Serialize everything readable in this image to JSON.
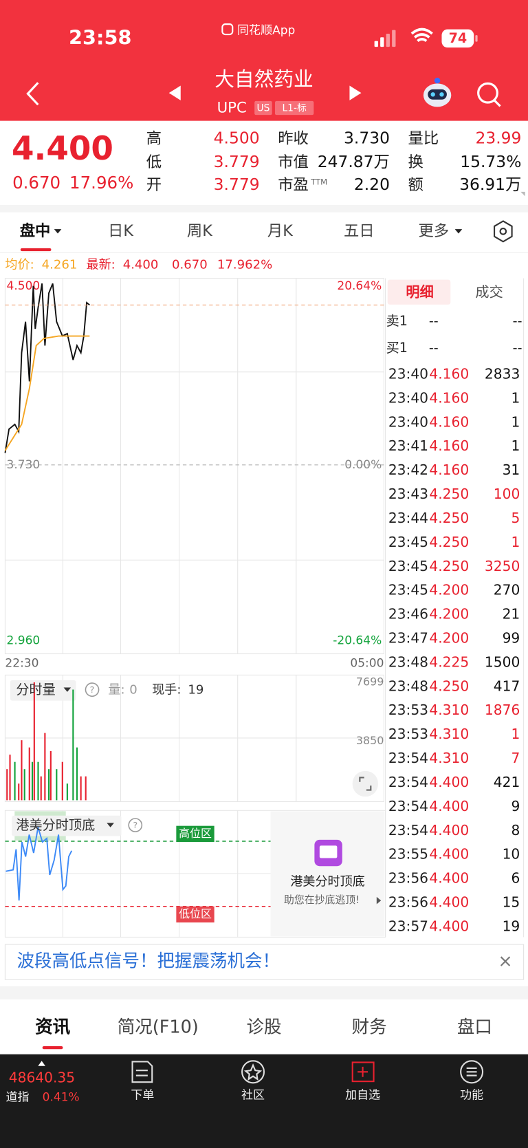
{
  "status_bar": {
    "time": "23:58",
    "app": "同花顺App",
    "battery": "74"
  },
  "header": {
    "name": "大自然药业",
    "code": "UPC",
    "badges": [
      "US",
      "L1-标"
    ]
  },
  "quote": {
    "price": "4.400",
    "change": "0.670",
    "change_pct": "17.96%",
    "stats": [
      {
        "label": "高",
        "value": "4.500",
        "color": "#e8212f"
      },
      {
        "label": "低",
        "value": "3.779",
        "color": "#e8212f"
      },
      {
        "label": "开",
        "value": "3.779",
        "color": "#e8212f"
      },
      {
        "label": "昨收",
        "value": "3.730",
        "color": "#111111"
      },
      {
        "label": "市值",
        "value": "247.87万",
        "color": "#111111"
      },
      {
        "label": "市盈",
        "sup": "TTM",
        "value": "2.20",
        "color": "#111111"
      },
      {
        "label": "量比",
        "value": "23.99",
        "color": "#e8212f"
      },
      {
        "label": "换",
        "value": "15.73%",
        "color": "#111111"
      },
      {
        "label": "额",
        "value": "36.91万",
        "color": "#111111"
      }
    ]
  },
  "tabs": {
    "items": [
      "盘中",
      "日K",
      "周K",
      "月K",
      "五日",
      "更多"
    ],
    "active": 0
  },
  "intraday": {
    "avg_label": "均价:",
    "avg": "4.261",
    "latest_label": "最新:",
    "latest": "4.400",
    "change": "0.670",
    "change_pct": "17.962%",
    "chart": {
      "type": "line",
      "xlim": [
        0,
        390
      ],
      "xticks": [
        {
          "value": 0,
          "label": "22:30"
        },
        {
          "value": 390,
          "label": "05:00"
        }
      ],
      "ylim": [
        2.96,
        4.5
      ],
      "yticks": [
        {
          "value": 4.5,
          "label": "4.500"
        },
        {
          "value": 3.73,
          "label": "3.730"
        },
        {
          "value": 2.96,
          "label": "2.960"
        }
      ],
      "pct_labels": [
        "20.64%",
        "0.00%",
        "-20.64%"
      ],
      "series": [
        {
          "color": "#111111",
          "x": [
            0,
            4,
            10,
            14,
            17,
            21,
            25,
            29,
            31,
            34,
            38,
            41,
            45,
            49,
            53,
            59,
            64,
            70,
            74,
            78,
            81,
            84,
            87
          ],
          "values": [
            3.78,
            3.88,
            3.9,
            3.87,
            4.2,
            4.33,
            4.08,
            4.48,
            4.3,
            4.39,
            4.49,
            4.23,
            4.45,
            4.49,
            4.33,
            4.27,
            4.28,
            4.17,
            4.23,
            4.2,
            4.27,
            4.41,
            4.4
          ]
        },
        {
          "color": "#f5a623",
          "x": [
            0,
            17,
            25,
            32,
            40,
            55,
            70,
            87
          ],
          "values": [
            3.79,
            3.9,
            4.05,
            4.23,
            4.26,
            4.27,
            4.27,
            4.27
          ]
        }
      ]
    }
  },
  "volume": {
    "title": "分时量",
    "volume_label": "量:",
    "volume": "0",
    "hand_label": "现手:",
    "hand": "19",
    "xlim": [
      0,
      390
    ],
    "ylim": [
      0,
      7699
    ],
    "yticks": [
      7699,
      3850
    ],
    "x": [
      2,
      5,
      10,
      14,
      17,
      20,
      25,
      28,
      30,
      34,
      37,
      41,
      45,
      47,
      53,
      59,
      64,
      70,
      74,
      78,
      83
    ],
    "values": [
      2031,
      2976,
      2503,
      1086,
      3920,
      2031,
      3448,
      2503,
      7699,
      2503,
      1559,
      4393,
      2031,
      3212,
      2031,
      2503,
      1086,
      7227,
      3448,
      1559,
      1559
    ],
    "colors": [
      "#e8212f",
      "#e8212f",
      "#12a33b",
      "#e8212f",
      "#e8212f",
      "#12a33b",
      "#e8212f",
      "#12a33b",
      "#e8212f",
      "#12a33b",
      "#e8212f",
      "#e8212f",
      "#12a33b",
      "#e8212f",
      "#12a33b",
      "#e8212f",
      "#12a33b",
      "#12a33b",
      "#12a33b",
      "#e8212f",
      "#e8212f"
    ]
  },
  "indicator": {
    "title": "港美分时顶底",
    "high_zone": "高位区",
    "low_zone": "低位区",
    "promo_title": "港美分时顶底",
    "promo_text": "助您在抄底逃顶!"
  },
  "trades": {
    "tabs": [
      "明细",
      "成交"
    ],
    "ask": {
      "label": "卖1",
      "price": "--",
      "volume": "--"
    },
    "bid": {
      "label": "买1",
      "price": "--",
      "volume": "--"
    },
    "rows": [
      {
        "time": "23:40",
        "price": "4.160",
        "volume": "2833",
        "color": "#111111"
      },
      {
        "time": "23:40",
        "price": "4.160",
        "volume": "1",
        "color": "#111111"
      },
      {
        "time": "23:40",
        "price": "4.160",
        "volume": "1",
        "color": "#111111"
      },
      {
        "time": "23:41",
        "price": "4.160",
        "volume": "1",
        "color": "#111111"
      },
      {
        "time": "23:42",
        "price": "4.160",
        "volume": "31",
        "color": "#111111"
      },
      {
        "time": "23:43",
        "price": "4.250",
        "volume": "100",
        "color": "#e8212f"
      },
      {
        "time": "23:44",
        "price": "4.250",
        "volume": "5",
        "color": "#e8212f"
      },
      {
        "time": "23:45",
        "price": "4.250",
        "volume": "1",
        "color": "#e8212f"
      },
      {
        "time": "23:45",
        "price": "4.250",
        "volume": "3250",
        "color": "#e8212f"
      },
      {
        "time": "23:45",
        "price": "4.200",
        "volume": "270",
        "color": "#111111"
      },
      {
        "time": "23:46",
        "price": "4.200",
        "volume": "21",
        "color": "#111111"
      },
      {
        "time": "23:47",
        "price": "4.200",
        "volume": "99",
        "color": "#111111"
      },
      {
        "time": "23:48",
        "price": "4.225",
        "volume": "1500",
        "color": "#111111"
      },
      {
        "time": "23:48",
        "price": "4.250",
        "volume": "417",
        "color": "#111111"
      },
      {
        "time": "23:53",
        "price": "4.310",
        "volume": "1876",
        "color": "#e8212f"
      },
      {
        "time": "23:53",
        "price": "4.310",
        "volume": "1",
        "color": "#e8212f"
      },
      {
        "time": "23:54",
        "price": "4.310",
        "volume": "7",
        "color": "#e8212f"
      },
      {
        "time": "23:54",
        "price": "4.400",
        "volume": "421",
        "color": "#111111"
      },
      {
        "time": "23:54",
        "price": "4.400",
        "volume": "9",
        "color": "#111111"
      },
      {
        "time": "23:54",
        "price": "4.400",
        "volume": "8",
        "color": "#111111"
      },
      {
        "time": "23:55",
        "price": "4.400",
        "volume": "10",
        "color": "#111111"
      },
      {
        "time": "23:56",
        "price": "4.400",
        "volume": "6",
        "color": "#111111"
      },
      {
        "time": "23:56",
        "price": "4.400",
        "volume": "15",
        "color": "#111111"
      },
      {
        "time": "23:57",
        "price": "4.400",
        "volume": "19",
        "color": "#111111"
      }
    ]
  },
  "banner": "波段高低点信号！把握震荡机会！",
  "bottom_tabs": [
    "资讯",
    "简况(F10)",
    "诊股",
    "财务",
    "盘口"
  ],
  "bottom_bar": {
    "index_value": "48640.35",
    "index_name": "道指",
    "index_change": "0.41%",
    "actions": [
      "下单",
      "社区",
      "加自选",
      "功能"
    ]
  }
}
